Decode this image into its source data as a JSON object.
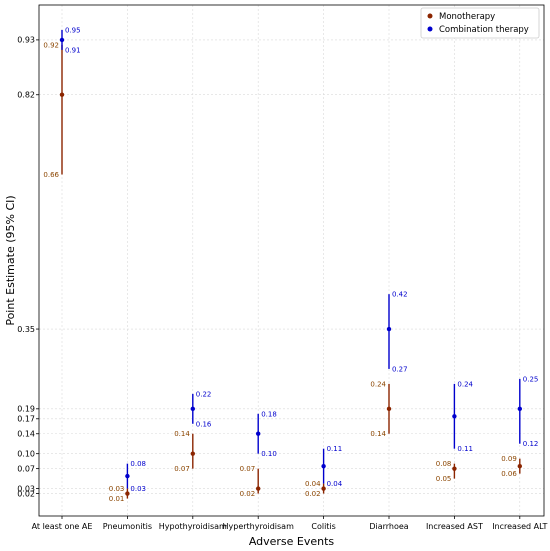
{
  "chart_data": {
    "type": "scatter",
    "xlabel": "Adverse Events",
    "ylabel": "Point Estimate (95% CI)",
    "categories": [
      "At least one AE",
      "Pneumonitis",
      "Hypothyroidisam",
      "Hyperthyroidisam",
      "Colitis",
      "Diarrhoea",
      "Increased AST",
      "Increased ALT"
    ],
    "yticks": [
      "0.02",
      "0.03",
      "0.07",
      "0.10",
      "0.14",
      "0.17",
      "0.19",
      "0.35",
      "0.82",
      "0.93"
    ],
    "ylim": [
      -0.025,
      1.0
    ],
    "grid": true,
    "legend": {
      "position": "top-right"
    },
    "series": [
      {
        "name": "Monotherapy",
        "color": "#8B2500",
        "point": [
          0.82,
          0.02,
          0.1,
          0.03,
          0.03,
          0.19,
          0.07,
          0.075
        ],
        "lower": [
          0.66,
          0.01,
          0.07,
          0.02,
          0.02,
          0.14,
          0.05,
          0.06
        ],
        "upper": [
          0.92,
          0.03,
          0.14,
          0.07,
          0.04,
          0.24,
          0.08,
          0.09
        ],
        "lower_labels": [
          "0.66",
          "0.01",
          "0.07",
          "0.02",
          "0.02",
          "0.14",
          "0.05",
          "0.06"
        ],
        "upper_labels": [
          "0.92",
          "0.03",
          "0.14",
          "0.07",
          "0.04",
          "0.24",
          "0.08",
          "0.09"
        ]
      },
      {
        "name": "Combination therapy",
        "color": "#0000CD",
        "point": [
          0.93,
          0.055,
          0.19,
          0.14,
          0.075,
          0.35,
          0.175,
          0.19
        ],
        "lower": [
          0.91,
          0.03,
          0.16,
          0.1,
          0.04,
          0.27,
          0.11,
          0.12
        ],
        "upper": [
          0.95,
          0.08,
          0.22,
          0.18,
          0.11,
          0.42,
          0.24,
          0.25
        ],
        "lower_labels": [
          "0.91",
          "0.03",
          "0.16",
          "0.10",
          "0.04",
          "0.27",
          "0.11",
          "0.12"
        ],
        "upper_labels": [
          "0.95",
          "0.08",
          "0.22",
          "0.18",
          "0.11",
          "0.42",
          "0.24",
          "0.25"
        ]
      }
    ]
  }
}
